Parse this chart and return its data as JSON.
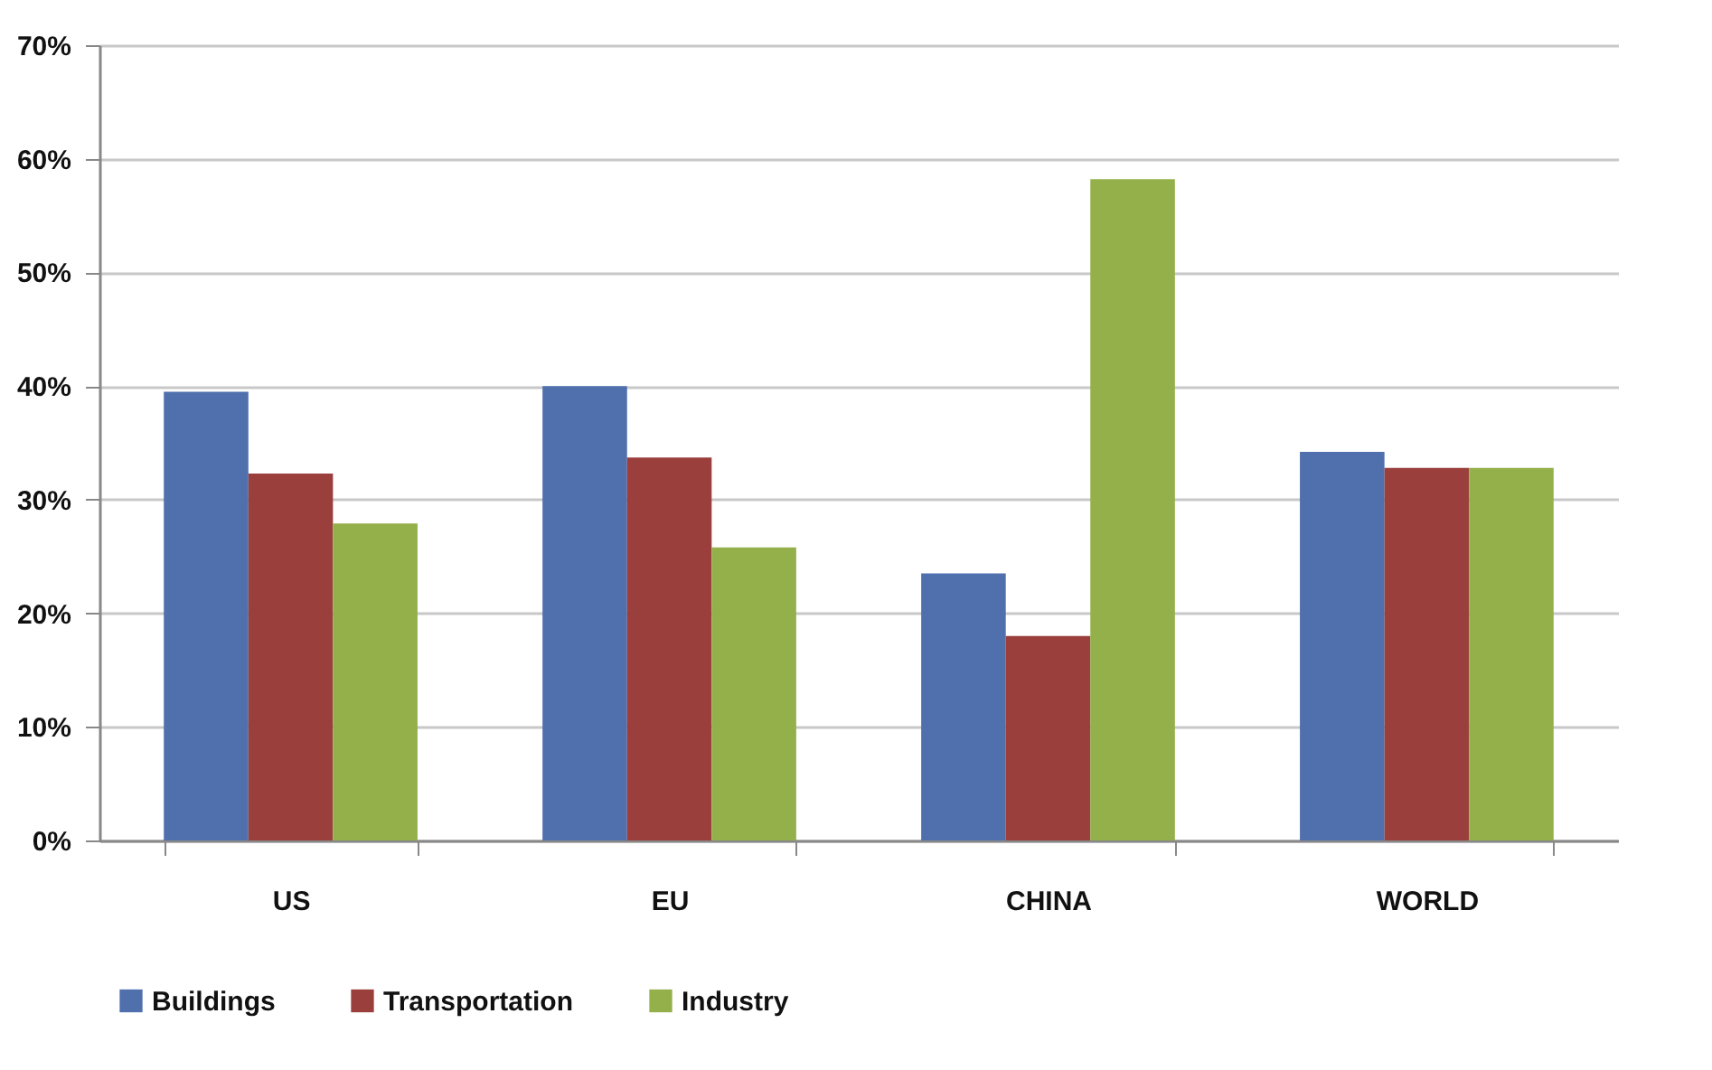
{
  "chart_data": {
    "type": "bar",
    "categories": [
      "US",
      "EU",
      "CHINA",
      "WORLD"
    ],
    "series": [
      {
        "name": "Buildings",
        "color": "#4f6fad",
        "values": [
          39.5,
          40,
          23.5,
          34.2
        ]
      },
      {
        "name": "Transportation",
        "color": "#9b3f3c",
        "values": [
          32.3,
          33.7,
          18,
          32.8
        ]
      },
      {
        "name": "Industry",
        "color": "#94b04a",
        "values": [
          27.9,
          25.8,
          58.2,
          32.8
        ]
      }
    ],
    "ylim": [
      0,
      70
    ],
    "yticks": [
      {
        "value": 0,
        "label": "0%"
      },
      {
        "value": 10,
        "label": "10%"
      },
      {
        "value": 20,
        "label": "20%"
      },
      {
        "value": 30,
        "label": "30%"
      },
      {
        "value": 40,
        "label": "40%"
      },
      {
        "value": 50,
        "label": "50%"
      },
      {
        "value": 60,
        "label": "60%"
      },
      {
        "value": 70,
        "label": "70%"
      }
    ],
    "grid": "y",
    "legend": "bottom"
  }
}
